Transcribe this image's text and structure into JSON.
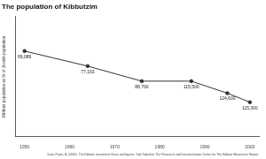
{
  "chart_data": {
    "type": "line",
    "title": "The population of Kibbutzim",
    "y_label": "Kibbutz population as % of Jewish population",
    "caption": "Data: Pavin, A. (2001). The Kibbutz movement: Facts and figures. Yad Tabenkin. The Research and Documentation Center for The Kibbutz Movement; Report.",
    "x": [
      1950,
      1964,
      1976,
      1987,
      1995,
      2000
    ],
    "values": [
      5.7,
      4.7,
      3.7,
      3.7,
      2.9,
      2.3
    ],
    "annotations": [
      "69,089",
      "77,153",
      "88,700",
      "115,500",
      "124,600",
      "115,300"
    ],
    "xlim": [
      1948,
      2002
    ],
    "xticks": [
      1950,
      1960,
      1970,
      1980,
      1990,
      2000
    ],
    "ylim": [
      0,
      8
    ],
    "tick_labels": "x",
    "grid": false,
    "color": "#333333",
    "marker": "circle",
    "line_style": "solid"
  }
}
